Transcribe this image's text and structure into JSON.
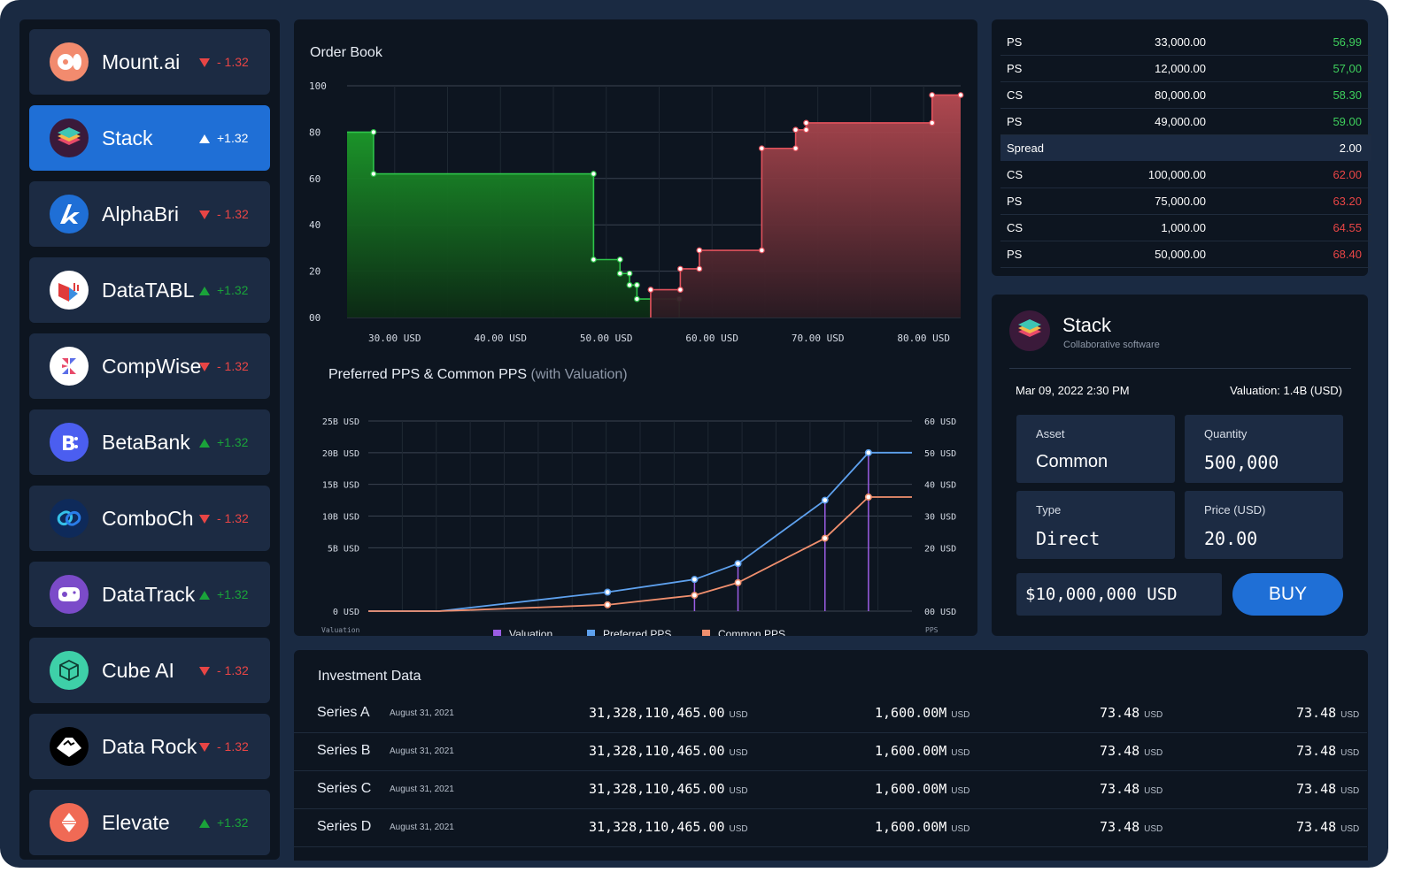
{
  "sidebar": {
    "companies": [
      {
        "name": "Mount.ai",
        "direction": "down",
        "change": "- 1.32",
        "logo": "mount-logo",
        "active": false
      },
      {
        "name": "Stack",
        "direction": "up",
        "change": "+1.32",
        "logo": "stack-logo",
        "active": true
      },
      {
        "name": "AlphaBri",
        "direction": "down",
        "change": "- 1.32",
        "logo": "alphabri-logo",
        "active": false
      },
      {
        "name": "DataTABL",
        "direction": "up",
        "change": "+1.32",
        "logo": "datatabl-logo",
        "active": false
      },
      {
        "name": "CompWise",
        "direction": "down",
        "change": "- 1.32",
        "logo": "compwise-logo",
        "active": false
      },
      {
        "name": "BetaBank",
        "direction": "up",
        "change": "+1.32",
        "logo": "betabank-logo",
        "active": false
      },
      {
        "name": "ComboCh",
        "direction": "down",
        "change": "- 1.32",
        "logo": "combo-logo",
        "active": false
      },
      {
        "name": "DataTrack",
        "direction": "up",
        "change": "+1.32",
        "logo": "datatrack-logo",
        "active": false
      },
      {
        "name": "Cube AI",
        "direction": "down",
        "change": "- 1.32",
        "logo": "cube-logo",
        "active": false
      },
      {
        "name": "Data Rock",
        "direction": "down",
        "change": "- 1.32",
        "logo": "datarock-logo",
        "active": false
      },
      {
        "name": "Elevate",
        "direction": "up",
        "change": "+1.32",
        "logo": "elevate-logo",
        "active": false
      }
    ]
  },
  "colors": {
    "up": "#1aa33a",
    "down": "#e84545",
    "accent": "#1f6fd6",
    "bid": "#1f8f2a",
    "ask": "#b84a52",
    "valuation": "#9b5de5",
    "preferred": "#5ea1ee",
    "common": "#f08f6e"
  },
  "chart_data": [
    {
      "type": "area",
      "title": "Order Book",
      "x_tick_labels": [
        "30.00 USD",
        "40.00 USD",
        "50.00 USD",
        "60.00 USD",
        "70.00 USD",
        "80.00 USD"
      ],
      "y_tick_labels": [
        "100",
        "80",
        "60",
        "40",
        "20",
        "00"
      ],
      "xlim": [
        25.5,
        83.5
      ],
      "ylim": [
        0,
        100
      ],
      "grid": true,
      "series": [
        {
          "side": "bid",
          "points": [
            [
              25.5,
              80
            ],
            [
              28,
              80
            ],
            [
              28,
              62
            ],
            [
              48.8,
              62
            ],
            [
              48.8,
              25
            ],
            [
              51.3,
              25
            ],
            [
              51.3,
              19
            ],
            [
              51.3,
              19
            ],
            [
              52.2,
              19
            ],
            [
              52.2,
              14
            ],
            [
              52.9,
              14
            ],
            [
              52.9,
              8
            ],
            [
              56.9,
              8
            ],
            [
              56.9,
              0
            ]
          ]
        },
        {
          "side": "ask",
          "points": [
            [
              54.2,
              0
            ],
            [
              54.2,
              12
            ],
            [
              57,
              12
            ],
            [
              57,
              21
            ],
            [
              58.8,
              21
            ],
            [
              58.8,
              29
            ],
            [
              64.7,
              29
            ],
            [
              64.7,
              73
            ],
            [
              67.9,
              73
            ],
            [
              67.9,
              81
            ],
            [
              68.9,
              81
            ],
            [
              68.9,
              84
            ],
            [
              80.8,
              84
            ],
            [
              80.8,
              96
            ],
            [
              83.5,
              96
            ]
          ]
        }
      ]
    },
    {
      "type": "line",
      "title": "Preferred PPS & Common PPS",
      "subtitle": "(with Valuation)",
      "left_axis_labels": [
        "25B USD",
        "20B USD",
        "15B USD",
        "10B USD",
        "5B USD",
        "0 USD"
      ],
      "right_axis_labels": [
        "60 USD",
        "50 USD",
        "40 USD",
        "30 USD",
        "20 USD",
        "00 USD"
      ],
      "left_axis_title": "Valuation",
      "right_axis_title": "PPS",
      "xlim": [
        0,
        100
      ],
      "ylim_pps": [
        0,
        60
      ],
      "grid": true,
      "x": [
        0,
        13,
        44,
        60,
        68,
        84,
        92,
        100
      ],
      "series": [
        {
          "name": "Valuation",
          "values": [
            0,
            0,
            0,
            0,
            0,
            0,
            0,
            0
          ],
          "drop_lines_at": [
            60,
            68,
            84,
            92
          ]
        },
        {
          "name": "Preferred PPS",
          "values": [
            0,
            0,
            6,
            10,
            15,
            35,
            50,
            50
          ],
          "markers_at": [
            44,
            60,
            68,
            84,
            92
          ]
        },
        {
          "name": "Common PPS",
          "values": [
            0,
            0,
            2,
            5,
            9,
            23,
            36,
            36
          ],
          "markers_at": [
            44,
            60,
            68,
            84,
            92
          ]
        }
      ]
    }
  ],
  "orderbook_table": {
    "rows": [
      {
        "type": "PS",
        "qty": "33,000.00",
        "price": "56,99",
        "side": "bid"
      },
      {
        "type": "PS",
        "qty": "12,000.00",
        "price": "57,00",
        "side": "bid"
      },
      {
        "type": "CS",
        "qty": "80,000.00",
        "price": "58.30",
        "side": "bid"
      },
      {
        "type": "PS",
        "qty": "49,000.00",
        "price": "59.00",
        "side": "bid"
      },
      {
        "type": "Spread",
        "qty": "",
        "price": "2.00",
        "side": "spread"
      },
      {
        "type": "CS",
        "qty": "100,000.00",
        "price": "62.00",
        "side": "ask"
      },
      {
        "type": "PS",
        "qty": "75,000.00",
        "price": "63.20",
        "side": "ask"
      },
      {
        "type": "CS",
        "qty": "1,000.00",
        "price": "64.55",
        "side": "ask"
      },
      {
        "type": "PS",
        "qty": "50,000.00",
        "price": "68.40",
        "side": "ask"
      }
    ]
  },
  "trade": {
    "company": "Stack",
    "tagline": "Collaborative software",
    "datetime": "Mar 09, 2022 2:30 PM",
    "valuation": "Valuation: 1.4B (USD)",
    "asset_label": "Asset",
    "asset_value": "Common",
    "quantity_label": "Quantity",
    "quantity_value": "500,000",
    "type_label": "Type",
    "type_value": "Direct",
    "price_label": "Price (USD)",
    "price_value": "20.00",
    "total": "$10,000,000 USD",
    "buy_label": "BUY"
  },
  "investment": {
    "title": "Investment Data",
    "rows": [
      {
        "series": "Series A",
        "date": "August 31, 2021",
        "amount": "31,328,110,465.00",
        "amount_unit": "USD",
        "valuation": "1,600.00M",
        "valuation_unit": "USD",
        "pps1": "73.48",
        "pps1_unit": "USD",
        "pps2": "73.48",
        "pps2_unit": "USD"
      },
      {
        "series": "Series B",
        "date": "August 31, 2021",
        "amount": "31,328,110,465.00",
        "amount_unit": "USD",
        "valuation": "1,600.00M",
        "valuation_unit": "USD",
        "pps1": "73.48",
        "pps1_unit": "USD",
        "pps2": "73.48",
        "pps2_unit": "USD"
      },
      {
        "series": "Series C",
        "date": "August 31, 2021",
        "amount": "31,328,110,465.00",
        "amount_unit": "USD",
        "valuation": "1,600.00M",
        "valuation_unit": "USD",
        "pps1": "73.48",
        "pps1_unit": "USD",
        "pps2": "73.48",
        "pps2_unit": "USD"
      },
      {
        "series": "Series D",
        "date": "August 31, 2021",
        "amount": "31,328,110,465.00",
        "amount_unit": "USD",
        "valuation": "1,600.00M",
        "valuation_unit": "USD",
        "pps1": "73.48",
        "pps1_unit": "USD",
        "pps2": "73.48",
        "pps2_unit": "USD"
      }
    ]
  }
}
